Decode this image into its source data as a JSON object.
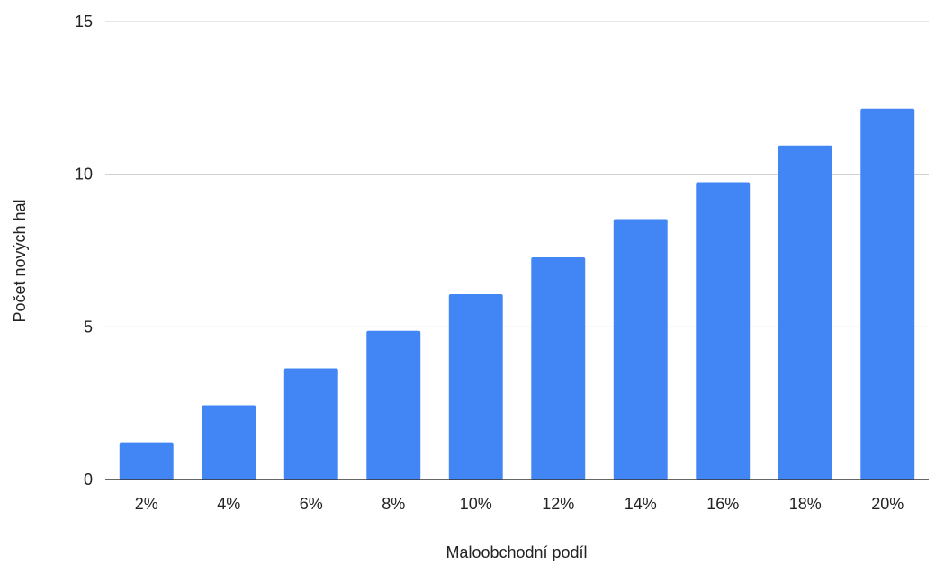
{
  "chart_data": {
    "type": "bar",
    "title": "",
    "xlabel": "Maloobchodní podíl",
    "ylabel": "Počet nových hal",
    "categories": [
      "2%",
      "4%",
      "6%",
      "8%",
      "10%",
      "12%",
      "14%",
      "16%",
      "18%",
      "20%"
    ],
    "series": [
      {
        "values": [
          1.22,
          2.43,
          3.64,
          4.87,
          6.07,
          7.28,
          8.53,
          9.74,
          10.94,
          12.15
        ]
      }
    ],
    "ylim": [
      0,
      15
    ],
    "yticks": [
      0,
      5,
      10,
      15
    ],
    "grid": true,
    "legend": "none",
    "colors": {
      "bar": "#4285f4",
      "grid": "#cccccc",
      "axis": "#333333"
    }
  }
}
